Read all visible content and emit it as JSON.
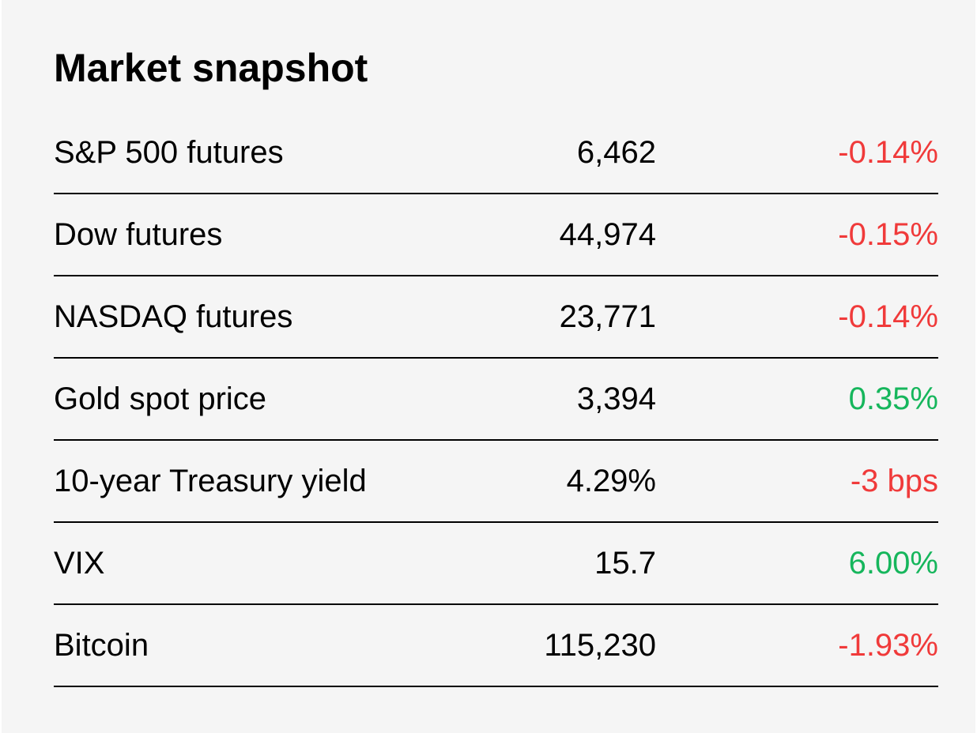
{
  "title": "Market snapshot",
  "colors": {
    "negative": "#f03a3a",
    "positive": "#16b65c",
    "background": "#f5f5f5"
  },
  "rows": [
    {
      "name": "S&P 500 futures",
      "value": "6,462",
      "change": "-0.14%",
      "direction": "negative"
    },
    {
      "name": "Dow futures",
      "value": "44,974",
      "change": "-0.15%",
      "direction": "negative"
    },
    {
      "name": "NASDAQ futures",
      "value": "23,771",
      "change": "-0.14%",
      "direction": "negative"
    },
    {
      "name": "Gold spot price",
      "value": "3,394",
      "change": "0.35%",
      "direction": "positive"
    },
    {
      "name": "10-year Treasury yield",
      "value": "4.29%",
      "change": "-3 bps",
      "direction": "negative"
    },
    {
      "name": "VIX",
      "value": "15.7",
      "change": "6.00%",
      "direction": "positive"
    },
    {
      "name": "Bitcoin",
      "value": "115,230",
      "change": "-1.93%",
      "direction": "negative"
    }
  ]
}
